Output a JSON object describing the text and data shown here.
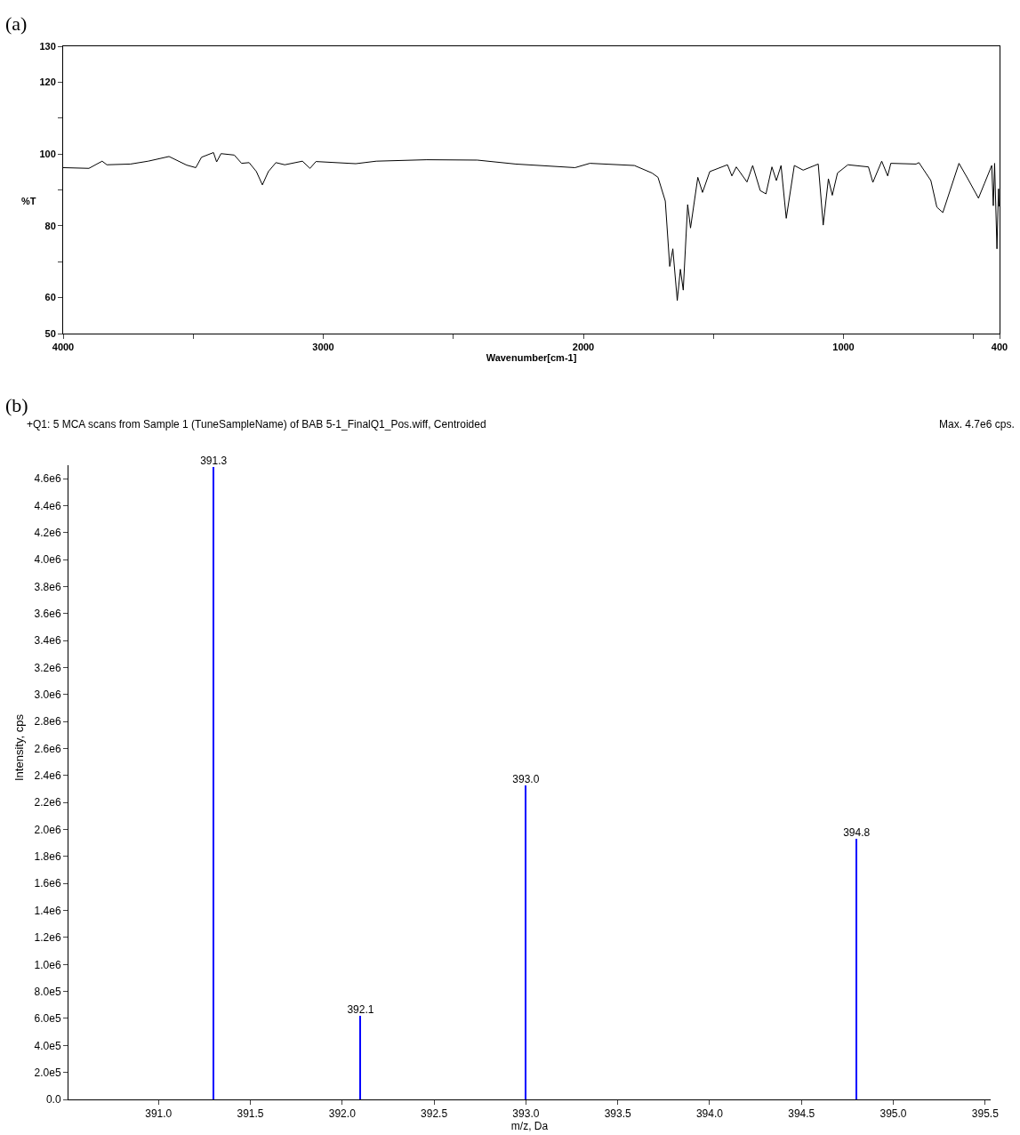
{
  "chart_data": [
    {
      "type": "line",
      "xlabel": "Wavenumber[cm-1]",
      "ylabel": "%T",
      "annotations": [
        "(a)"
      ],
      "x": [
        4000,
        3901,
        3850,
        3832,
        3741,
        3673,
        3593,
        3525,
        3490,
        3468,
        3422,
        3410,
        3393,
        3342,
        3314,
        3285,
        3257,
        3234,
        3211,
        3182,
        3148,
        3080,
        3051,
        3028,
        2875,
        2796,
        2602,
        2408,
        2260,
        2032,
        1975,
        1804,
        1736,
        1713,
        1685,
        1668,
        1656,
        1639,
        1627,
        1616,
        1599,
        1588,
        1560,
        1542,
        1514,
        1446,
        1429,
        1412,
        1371,
        1349,
        1320,
        1298,
        1275,
        1258,
        1240,
        1220,
        1189,
        1155,
        1097,
        1078,
        1058,
        1043,
        1023,
        983,
        904,
        887,
        853,
        830,
        818,
        721,
        710,
        664,
        641,
        618,
        556,
        522,
        481,
        458,
        430,
        424,
        419,
        410,
        404,
        402
      ],
      "series": [
        {
          "color": "#000000",
          "values": [
            96.2,
            96.0,
            98.0,
            97.0,
            97.2,
            98.0,
            99.3,
            96.9,
            96.2,
            99.1,
            100.4,
            97.8,
            100.1,
            99.7,
            97.4,
            97.6,
            95.1,
            91.4,
            95.1,
            97.6,
            97.0,
            98.0,
            96.0,
            97.9,
            97.3,
            98.0,
            98.4,
            98.3,
            97.2,
            96.2,
            97.4,
            96.8,
            94.7,
            93.5,
            86.9,
            68.7,
            73.6,
            59.2,
            67.9,
            62.1,
            85.9,
            79.4,
            93.5,
            89.3,
            95.1,
            97.0,
            93.9,
            96.4,
            92.2,
            96.8,
            89.8,
            88.9,
            96.4,
            92.6,
            96.8,
            82.1,
            96.8,
            95.5,
            97.2,
            80.2,
            93.1,
            88.5,
            94.7,
            97.0,
            96.4,
            92.1,
            98.0,
            93.9,
            97.4,
            97.2,
            97.6,
            92.6,
            85.2,
            83.7,
            97.4,
            93.1,
            87.7,
            91.8,
            96.8,
            85.6,
            97.4,
            73.6,
            90.3,
            85.4
          ]
        }
      ],
      "xlim": [
        4000,
        400
      ],
      "ylim": [
        50,
        130
      ],
      "xticks": [
        4000,
        {
          "value": 3500,
          "label": null
        },
        3000,
        {
          "value": 2500,
          "label": null
        },
        2000,
        {
          "value": 1500,
          "label": null
        },
        1000,
        {
          "value": 500,
          "label": null
        },
        400
      ],
      "yticks": [
        50,
        60,
        {
          "value": 70,
          "label": null
        },
        80,
        {
          "value": 90,
          "label": null
        },
        100,
        {
          "value": 110,
          "label": null
        },
        120,
        130
      ],
      "line_style": "solid",
      "marker": "none"
    },
    {
      "type": "bar",
      "title": "+Q1: 5 MCA scans from Sample 1 (TuneSampleName) of BAB 5-1_FinalQ1_Pos.wiff, Centroided",
      "xlabel": "m/z, Da",
      "ylabel": "Intensity, cps",
      "annotations": [
        "(b)",
        "Max. 4.7e6 cps."
      ],
      "x": [
        391.3,
        392.1,
        393.0,
        394.8
      ],
      "series": [
        {
          "color": "#0000ff",
          "values": [
            4690000,
            620000,
            2330000,
            1930000
          ]
        }
      ],
      "value_labels": [
        "391.3",
        "392.1",
        "393.0",
        "394.8"
      ],
      "xlim": [
        390.51,
        395.53
      ],
      "ylim": [
        0,
        4700000
      ],
      "xticks": [
        {
          "value": 391.0,
          "label": "391.0"
        },
        {
          "value": 391.5,
          "label": "391.5"
        },
        {
          "value": 392.0,
          "label": "392.0"
        },
        {
          "value": 392.5,
          "label": "392.5"
        },
        {
          "value": 393.0,
          "label": "393.0"
        },
        {
          "value": 393.5,
          "label": "393.5"
        },
        {
          "value": 394.0,
          "label": "394.0"
        },
        {
          "value": 394.5,
          "label": "394.5"
        },
        {
          "value": 395.0,
          "label": "395.0"
        },
        {
          "value": 395.5,
          "label": "395.5"
        }
      ],
      "yticks": [
        {
          "value": 0,
          "label": "0.0"
        },
        {
          "value": 200000,
          "label": "2.0e5"
        },
        {
          "value": 400000,
          "label": "4.0e5"
        },
        {
          "value": 600000,
          "label": "6.0e5"
        },
        {
          "value": 800000,
          "label": "8.0e5"
        },
        {
          "value": 1000000,
          "label": "1.0e6"
        },
        {
          "value": 1200000,
          "label": "1.2e6"
        },
        {
          "value": 1400000,
          "label": "1.4e6"
        },
        {
          "value": 1600000,
          "label": "1.6e6"
        },
        {
          "value": 1800000,
          "label": "1.8e6"
        },
        {
          "value": 2000000,
          "label": "2.0e6"
        },
        {
          "value": 2200000,
          "label": "2.2e6"
        },
        {
          "value": 2400000,
          "label": "2.4e6"
        },
        {
          "value": 2600000,
          "label": "2.6e6"
        },
        {
          "value": 2800000,
          "label": "2.8e6"
        },
        {
          "value": 3000000,
          "label": "3.0e6"
        },
        {
          "value": 3200000,
          "label": "3.2e6"
        },
        {
          "value": 3400000,
          "label": "3.4e6"
        },
        {
          "value": 3600000,
          "label": "3.6e6"
        },
        {
          "value": 3800000,
          "label": "3.8e6"
        },
        {
          "value": 4000000,
          "label": "4.0e6"
        },
        {
          "value": 4200000,
          "label": "4.2e6"
        },
        {
          "value": 4400000,
          "label": "4.4e6"
        },
        {
          "value": 4600000,
          "label": "4.6e6"
        }
      ]
    }
  ]
}
